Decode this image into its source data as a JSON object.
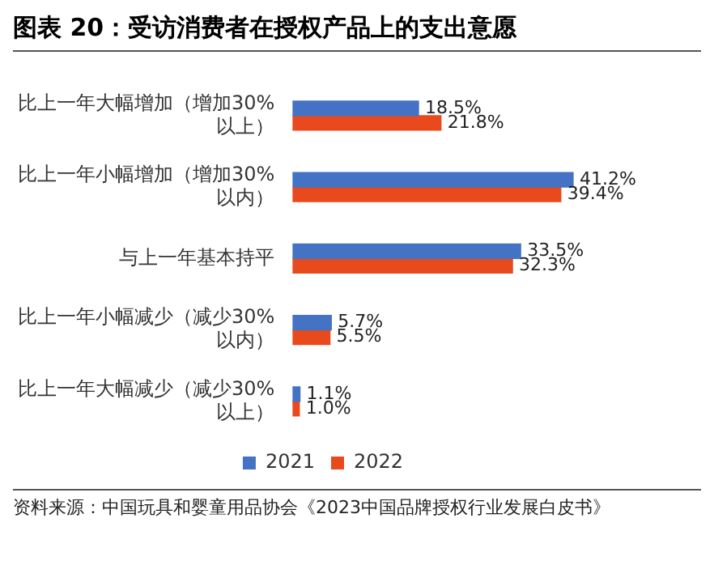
{
  "chart_data": {
    "type": "bar",
    "orientation": "horizontal",
    "title": "图表 20：受访消费者在授权产品上的支出意愿",
    "categories": [
      "比上一年大幅增加（增加30%以上）",
      "比上一年小幅增加（增加30%以内）",
      "与上一年基本持平",
      "比上一年小幅减少（减少30%以内）",
      "比上一年大幅减少（减少30%以上）"
    ],
    "series": [
      {
        "name": "2021",
        "color": "#4472c4",
        "values": [
          18.5,
          41.2,
          33.5,
          5.7,
          1.1
        ],
        "value_labels": [
          "18.5%",
          "41.2%",
          "33.5%",
          "5.7%",
          "1.1%"
        ]
      },
      {
        "name": "2022",
        "color": "#e84a1e",
        "values": [
          21.8,
          39.4,
          32.3,
          5.5,
          1.0
        ],
        "value_labels": [
          "21.8%",
          "39.4%",
          "32.3%",
          "5.5%",
          "1.0%"
        ]
      }
    ],
    "legend": "bottom",
    "tick_labels": "y",
    "annotations": [
      "资料来源：中国玩具和婴童用品协会《2023中国品牌授权行业发展白皮书》"
    ]
  }
}
